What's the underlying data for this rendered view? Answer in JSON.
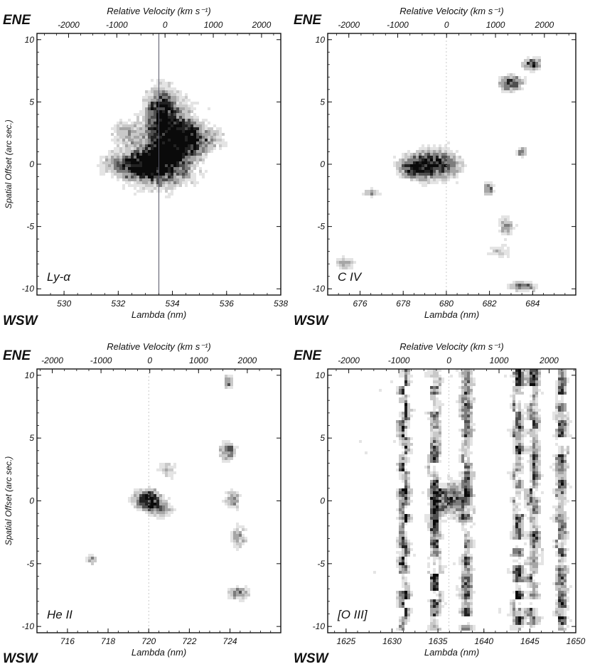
{
  "chart_data": [
    {
      "type": "heatmap",
      "panel_label": "Ly-α",
      "xlabel": "Lambda (nm)",
      "x2label": "Relative Velocity (km s⁻¹)",
      "ylabel": "Spatial Offset (arc sec.)",
      "top_left_label": "ENE",
      "bottom_left_label": "WSW",
      "xlim": [
        529.0,
        538.0
      ],
      "x_ticks": [
        "530",
        "532",
        "534",
        "536",
        "538"
      ],
      "x2lim": [
        -2655,
        2399
      ],
      "x2_ticks": [
        "-2000",
        "-1000",
        "0",
        "1000",
        "2000"
      ],
      "ylim": [
        -10.5,
        10.5
      ],
      "y_ticks": [
        "10",
        "5",
        "0",
        "-5",
        "-10"
      ],
      "line_center": 533.5,
      "blobs": [
        {
          "x": 534.0,
          "y": 1.8,
          "sx": 0.7,
          "sy": 2.2,
          "amp": 1.0
        },
        {
          "x": 533.0,
          "y": -0.2,
          "sx": 0.7,
          "sy": 1.0,
          "amp": 0.85
        },
        {
          "x": 533.6,
          "y": 4.5,
          "sx": 0.35,
          "sy": 1.2,
          "amp": 0.6
        },
        {
          "x": 535.0,
          "y": 2.0,
          "sx": 0.7,
          "sy": 0.8,
          "amp": 0.5
        },
        {
          "x": 532.3,
          "y": 2.5,
          "sx": 0.4,
          "sy": 0.7,
          "amp": 0.45
        },
        {
          "x": 532.0,
          "y": 0.0,
          "sx": 0.5,
          "sy": 0.6,
          "amp": 0.4
        }
      ],
      "noise_level": 0.25
    },
    {
      "type": "heatmap",
      "panel_label": "C IV",
      "xlabel": "Lambda (nm)",
      "x2label": "Relative Velocity (km s⁻¹)",
      "ylabel": "",
      "top_left_label": "ENE",
      "bottom_left_label": "WSW",
      "xlim": [
        674.5,
        686.0
      ],
      "x_ticks": [
        "676",
        "678",
        "680",
        "682",
        "684"
      ],
      "x2lim": [
        -2432,
        2642
      ],
      "x2_ticks": [
        "-2000",
        "-1000",
        "0",
        "1000",
        "2000"
      ],
      "ylim": [
        -10.5,
        10.5
      ],
      "y_ticks": [
        "10",
        "5",
        "0",
        "-5",
        "-10"
      ],
      "line_center": 680.0,
      "blobs": [
        {
          "x": 679.5,
          "y": 0.0,
          "sx": 0.9,
          "sy": 0.9,
          "amp": 0.85
        },
        {
          "x": 678.5,
          "y": -0.3,
          "sx": 0.5,
          "sy": 0.6,
          "amp": 0.6
        },
        {
          "x": 683.0,
          "y": 6.5,
          "sx": 0.4,
          "sy": 0.5,
          "amp": 0.8
        },
        {
          "x": 684.0,
          "y": 8.0,
          "sx": 0.3,
          "sy": 0.4,
          "amp": 0.8
        },
        {
          "x": 683.6,
          "y": -9.8,
          "sx": 0.5,
          "sy": 0.3,
          "amp": 0.7
        },
        {
          "x": 682.8,
          "y": -5.0,
          "sx": 0.3,
          "sy": 0.6,
          "amp": 0.6
        },
        {
          "x": 682.0,
          "y": -2.0,
          "sx": 0.2,
          "sy": 0.4,
          "amp": 0.7
        },
        {
          "x": 682.5,
          "y": -7.0,
          "sx": 0.4,
          "sy": 0.3,
          "amp": 0.5
        },
        {
          "x": 675.3,
          "y": -8.0,
          "sx": 0.4,
          "sy": 0.4,
          "amp": 0.5
        },
        {
          "x": 683.5,
          "y": 1.0,
          "sx": 0.2,
          "sy": 0.3,
          "amp": 0.6
        },
        {
          "x": 676.5,
          "y": -2.3,
          "sx": 0.3,
          "sy": 0.3,
          "amp": 0.5
        }
      ],
      "noise_level": 0.22
    },
    {
      "type": "heatmap",
      "panel_label": "He II",
      "xlabel": "Lambda (nm)",
      "x2label": "Relative Velocity (km s⁻¹)",
      "ylabel": "Spatial Offset (arc sec.)",
      "top_left_label": "ENE",
      "bottom_left_label": "WSW",
      "xlim": [
        714.5,
        726.5
      ],
      "x_ticks": [
        "716",
        "718",
        "720",
        "722",
        "724"
      ],
      "x2lim": [
        -2314,
        2687
      ],
      "x2_ticks": [
        "-2000",
        "-1000",
        "0",
        "1000",
        "2000"
      ],
      "ylim": [
        -10.5,
        10.5
      ],
      "y_ticks": [
        "10",
        "5",
        "0",
        "-5",
        "-10"
      ],
      "line_center": 720.0,
      "blobs": [
        {
          "x": 720.0,
          "y": 0.0,
          "sx": 0.5,
          "sy": 0.6,
          "amp": 1.0
        },
        {
          "x": 720.8,
          "y": -0.8,
          "sx": 0.5,
          "sy": 0.5,
          "amp": 0.5
        },
        {
          "x": 721.0,
          "y": 2.5,
          "sx": 0.4,
          "sy": 0.5,
          "amp": 0.4
        },
        {
          "x": 724.0,
          "y": 4.0,
          "sx": 0.3,
          "sy": 0.6,
          "amp": 0.7
        },
        {
          "x": 724.2,
          "y": 0.0,
          "sx": 0.3,
          "sy": 0.6,
          "amp": 0.6
        },
        {
          "x": 724.5,
          "y": -7.5,
          "sx": 0.4,
          "sy": 0.4,
          "amp": 0.7
        },
        {
          "x": 724.0,
          "y": 9.5,
          "sx": 0.2,
          "sy": 0.5,
          "amp": 0.6
        },
        {
          "x": 717.2,
          "y": -4.8,
          "sx": 0.2,
          "sy": 0.3,
          "amp": 0.5
        },
        {
          "x": 724.5,
          "y": -3.0,
          "sx": 0.3,
          "sy": 0.8,
          "amp": 0.5
        }
      ],
      "noise_level": 0.22
    },
    {
      "type": "heatmap",
      "panel_label": "[O III]",
      "xlabel": "Lambda (nm)",
      "x2label": "Relative Velocity (km s⁻¹)",
      "ylabel": "",
      "top_left_label": "ENE",
      "bottom_left_label": "WSW",
      "xlim": [
        1623.0,
        1650.0
      ],
      "x_ticks": [
        "1625",
        "1630",
        "1635",
        "1640",
        "1645",
        "1650"
      ],
      "x2lim": [
        -2420,
        2532
      ],
      "x2_ticks": [
        "-2000",
        "-1000",
        "0",
        "1000",
        "2000"
      ],
      "ylim": [
        -10.5,
        10.5
      ],
      "y_ticks": [
        "10",
        "5",
        "0",
        "-5",
        "-10"
      ],
      "line_center": 1636.2,
      "sky_lines": [
        1631.3,
        1634.7,
        1638.2,
        1643.8,
        1645.5,
        1648.5
      ],
      "blobs": [
        {
          "x": 1636.5,
          "y": 0.0,
          "sx": 1.2,
          "sy": 1.0,
          "amp": 0.7
        }
      ],
      "noise_level": 0.32
    }
  ]
}
